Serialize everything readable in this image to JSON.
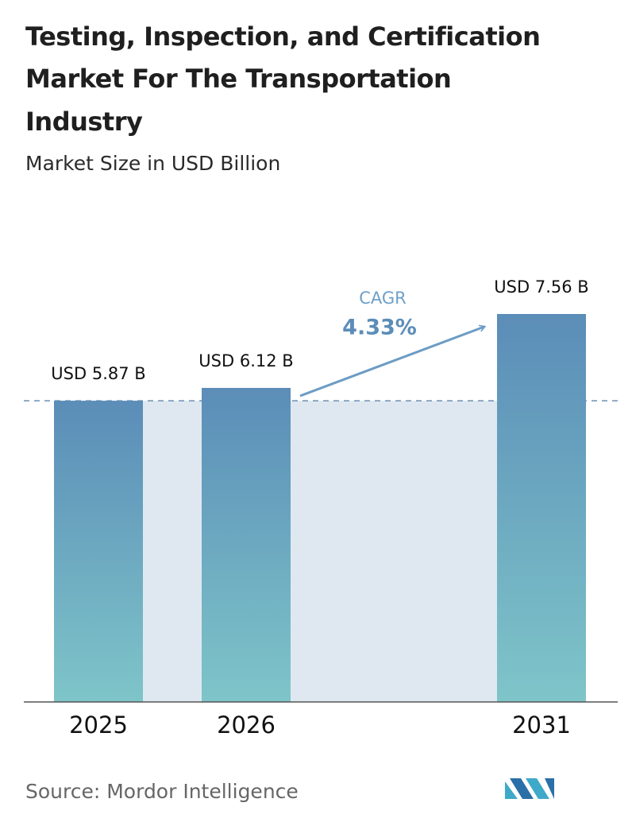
{
  "chart_data": {
    "type": "bar",
    "title_lines": [
      "Testing, Inspection, and Certification",
      "Market For The Transportation",
      "Industry"
    ],
    "subtitle": "Market Size in USD Billion",
    "categories": [
      "2025",
      "2026",
      "2031"
    ],
    "values": [
      5.87,
      6.12,
      7.56
    ],
    "value_labels": [
      "USD 5.87 B",
      "USD 6.12 B",
      "USD 7.56 B"
    ],
    "color_top": "#5b8db8",
    "color_bottom": "#7ec5c9",
    "cagr_label": "CAGR",
    "cagr_value": "4.33%",
    "source": "Source:  Mordor Intelligence"
  }
}
